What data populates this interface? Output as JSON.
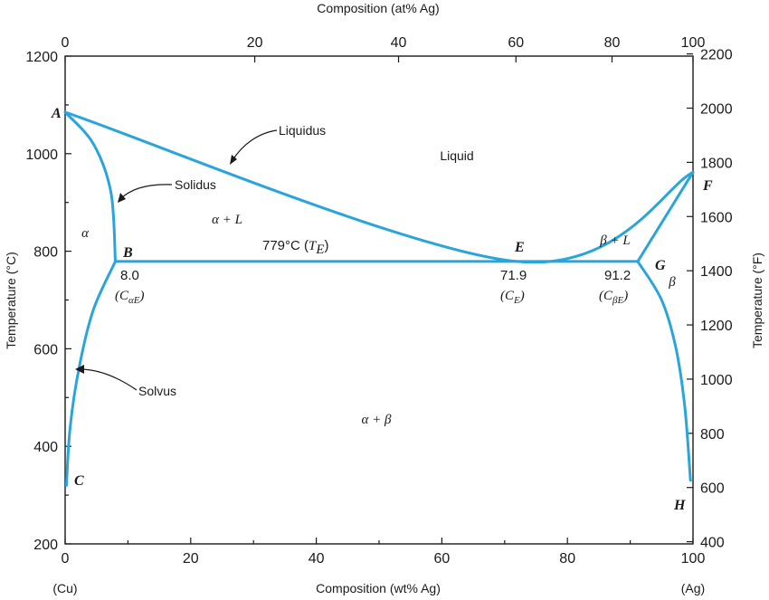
{
  "chart_data": {
    "type": "line",
    "title": "",
    "xlabel_bottom": "Composition (wt% Ag)",
    "xlabel_top": "Composition (at% Ag)",
    "ylabel_left": "Temperature (°C)",
    "ylabel_right": "Temperature (°F)",
    "xlim": [
      0,
      100
    ],
    "ylim": [
      200,
      1200
    ],
    "x_ticks_bottom": [
      "0",
      "20",
      "40",
      "60",
      "80",
      "100"
    ],
    "x_ticks_bottom_values": [
      0,
      20,
      40,
      60,
      80,
      100
    ],
    "x_ticks_top": [
      "0",
      "20",
      "40",
      "60",
      "80",
      "100"
    ],
    "x_ticks_top_positions_wt": [
      0,
      30.2,
      53.1,
      71.8,
      87.1,
      100
    ],
    "y_ticks_left": [
      "200",
      "400",
      "600",
      "800",
      "1000",
      "1200"
    ],
    "y_ticks_left_values": [
      200,
      400,
      600,
      800,
      1000,
      1200
    ],
    "y_ticks_right": [
      "400",
      "600",
      "800",
      "1000",
      "1200",
      "1400",
      "1600",
      "1800",
      "2000",
      "2200"
    ],
    "y_ticks_right_values_f": [
      400,
      600,
      800,
      1000,
      1200,
      1400,
      1600,
      1800,
      2000,
      2200
    ],
    "grid": false,
    "line_color": "#2aa5dc",
    "text_color": "#1a1a1a",
    "end_labels": {
      "left": "(Cu)",
      "right": "(Ag)"
    },
    "series": [
      {
        "name": "Liquidus",
        "x": [
          0,
          71.9,
          100
        ],
        "y": [
          1085,
          779,
          962
        ]
      },
      {
        "name": "Solidus",
        "x": [
          0,
          4.5,
          7.3,
          8.0
        ],
        "y": [
          1085,
          1020,
          920,
          779
        ]
      },
      {
        "name": "",
        "x": [
          91.2,
          100
        ],
        "y": [
          779,
          962
        ]
      },
      {
        "name": "",
        "x": [
          8.0,
          91.2
        ],
        "y": [
          779,
          779
        ]
      },
      {
        "name": "Solvus",
        "x": [
          8.0,
          4.5,
          2.2,
          0.8,
          0.2
        ],
        "y": [
          779,
          680,
          560,
          440,
          320
        ]
      },
      {
        "name": "",
        "x": [
          91.2,
          95.0,
          97.3,
          98.7,
          99.6
        ],
        "y": [
          779,
          700,
          600,
          480,
          330
        ]
      }
    ],
    "points": [
      {
        "label": "A",
        "x": 0,
        "y": 1085
      },
      {
        "label": "B",
        "x": 8.0,
        "y": 779
      },
      {
        "label": "C",
        "x": 0,
        "y": 320
      },
      {
        "label": "E",
        "x": 71.9,
        "y": 779
      },
      {
        "label": "F",
        "x": 100,
        "y": 962
      },
      {
        "label": "G",
        "x": 91.2,
        "y": 779
      },
      {
        "label": "H",
        "x": 100,
        "y": 330
      }
    ],
    "annotations": {
      "liquid": "Liquid",
      "alpha": "α",
      "beta": "β",
      "alpha_l": "α + L",
      "beta_l": "β + L",
      "alpha_beta": "α + β",
      "te_value": "779°C (",
      "te_sym": "T",
      "te_sub": "E",
      "te_close": ")",
      "b_value": "8.0",
      "b_sym": "(C",
      "b_sub": "αE",
      "b_close": ")",
      "e_value": "71.9",
      "e_sym": "(C",
      "e_sub": "E",
      "e_close": ")",
      "g_value": "91.2",
      "g_sym": "(C",
      "g_sub": "βE",
      "g_close": ")",
      "liquidus_label": "Liquidus",
      "solidus_label": "Solidus",
      "solvus_label": "Solvus"
    }
  }
}
